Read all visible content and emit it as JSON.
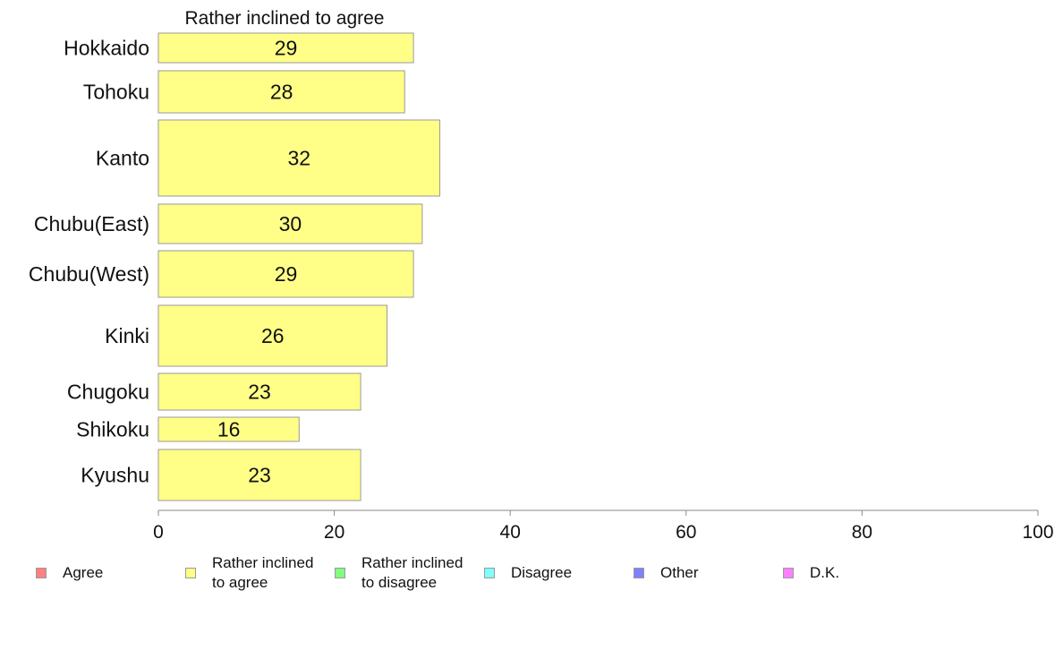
{
  "chart_data": {
    "type": "bar",
    "orientation": "horizontal",
    "title": "Rather inclined to agree",
    "categories": [
      "Hokkaido",
      "Tohoku",
      "Kanto",
      "Chubu(East)",
      "Chubu(West)",
      "Kinki",
      "Chugoku",
      "Shikoku",
      "Kyushu"
    ],
    "values": [
      29,
      28,
      32,
      30,
      29,
      26,
      23,
      16,
      23
    ],
    "xlim": [
      0,
      100
    ],
    "xticks": [
      0,
      20,
      40,
      60,
      80,
      100
    ],
    "bar_color": "#ffff88",
    "grid": false,
    "legend_position": "bottom"
  },
  "legend": [
    {
      "lines": [
        "Agree"
      ],
      "color": "#ff8080"
    },
    {
      "lines": [
        "Rather inclined",
        "to agree"
      ],
      "color": "#ffff88"
    },
    {
      "lines": [
        "Rather inclined",
        "to disagree"
      ],
      "color": "#80ff80"
    },
    {
      "lines": [
        "Disagree"
      ],
      "color": "#80ffff"
    },
    {
      "lines": [
        "Other"
      ],
      "color": "#8080ff"
    },
    {
      "lines": [
        "D.K."
      ],
      "color": "#ff80ff"
    }
  ]
}
